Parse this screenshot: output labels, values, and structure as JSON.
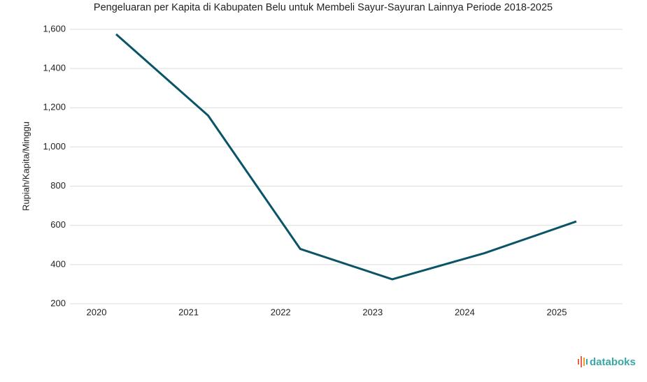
{
  "chart_data": {
    "type": "line",
    "title": "Pengeluaran per Kapita di Kabupaten Belu untuk Membeli Sayur-Sayuran Lainnya Periode 2018-2025",
    "y_label": "Rupiah/Kapita/Minggu",
    "categories": [
      "2020",
      "2021",
      "2022",
      "2023",
      "2024",
      "2025"
    ],
    "series": [
      {
        "name": "Pengeluaran",
        "color": "#0b5468",
        "values": [
          1575,
          1160,
          480,
          325,
          458,
          620
        ]
      }
    ],
    "ylim": [
      200,
      1600
    ],
    "yticks": [
      200,
      400,
      600,
      {
        "value": 800,
        "label": "800"
      },
      {
        "value": 1000,
        "label": "1,000"
      },
      {
        "value": 1200,
        "label": "1,200"
      },
      {
        "value": 1400,
        "label": "1,400"
      },
      {
        "value": 1600,
        "label": "1,600"
      }
    ],
    "grid": true,
    "source": "databoks"
  }
}
